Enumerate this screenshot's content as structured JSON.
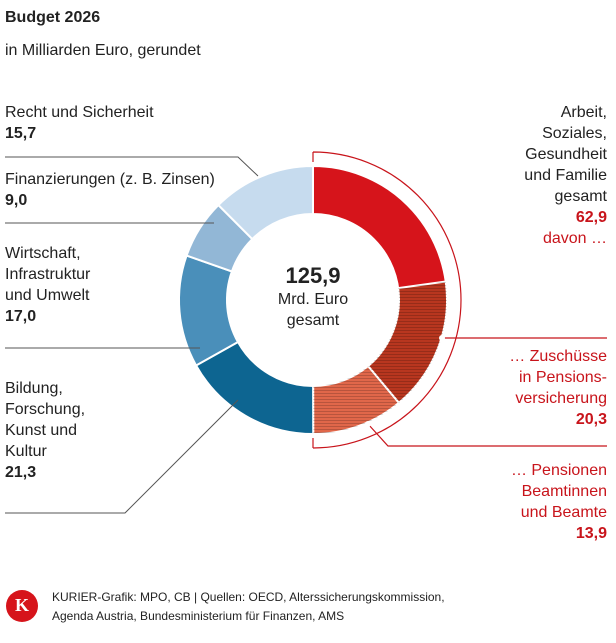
{
  "chart_data": {
    "type": "donut",
    "title": "Budget 2026",
    "subtitle": "in Milliarden Euro, gerundet",
    "total": 125.9,
    "total_label": "125,9",
    "center_text": [
      "Mrd. Euro",
      "gesamt"
    ],
    "segments": [
      {
        "name": [
          "Arbeit,",
          "Soziales,",
          "Gesundheit",
          "und Familie",
          "gesamt"
        ],
        "value": 62.9,
        "value_label": "62,9",
        "note": "davon …",
        "color": "#d6141b"
      },
      {
        "name": [
          "Bildung,",
          "Forschung,",
          "Kunst und",
          "Kultur"
        ],
        "value": 21.3,
        "value_label": "21,3",
        "color": "#0d6591"
      },
      {
        "name": [
          "Wirtschaft,",
          "Infrastruktur",
          "und Umwelt"
        ],
        "value": 17.0,
        "value_label": "17,0",
        "color": "#4a8fba"
      },
      {
        "name": [
          "Finanzierungen (z. B. Zinsen)"
        ],
        "value": 9.0,
        "value_label": "9,0",
        "color": "#92b7d6"
      },
      {
        "name": [
          "Recht und Sicherheit"
        ],
        "value": 15.7,
        "value_label": "15,7",
        "color": "#c6dbee"
      }
    ],
    "sub_segments": [
      {
        "name": [
          "… Zuschüsse",
          "in Pensions-",
          "versicherung"
        ],
        "value": 20.3,
        "value_label": "20,3",
        "color": "#b8361f"
      },
      {
        "name": [
          "… Pensionen",
          "Beamtinnen",
          "und Beamte"
        ],
        "value": 13.9,
        "value_label": "13,9",
        "color": "#e0674a"
      }
    ]
  },
  "footer": {
    "logo": "K",
    "source": [
      "KURIER-Grafik: MPO, CB | Quellen: OECD, Alterssicherungskommission,",
      "Agenda Austria, Bundesministerium für Finanzen, AMS"
    ]
  }
}
